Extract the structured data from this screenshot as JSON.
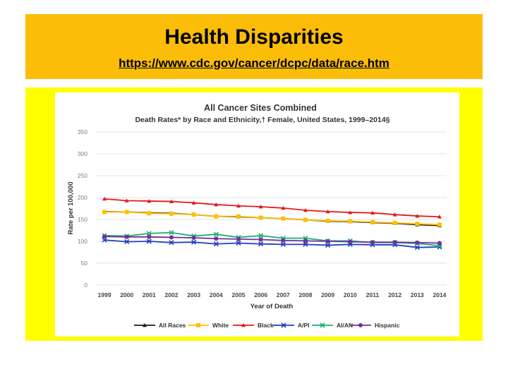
{
  "slide": {
    "title": "Health Disparities",
    "link": "https://www.cdc.gov/cancer/dcpc/data/race.htm"
  },
  "colors": {
    "header_bg": "#fbbd08",
    "panel_bg": "#ffff00",
    "gridline": "#e3e3e3",
    "tick_text": "#7f7f7f"
  },
  "chart_data": {
    "type": "line",
    "title": "All Cancer Sites Combined",
    "subtitle": "Death Rates* by Race and Ethnicity,†  Female, United States, 1999–2014§",
    "xlabel": "Year of Death",
    "ylabel": "Rate per 100,000",
    "ylim": [
      0,
      350
    ],
    "yticks": [
      0,
      50,
      100,
      150,
      200,
      250,
      300,
      350
    ],
    "grid": true,
    "legend_position": "bottom",
    "categories": [
      "1999",
      "2000",
      "2001",
      "2002",
      "2003",
      "2004",
      "2005",
      "2006",
      "2007",
      "2008",
      "2009",
      "2010",
      "2011",
      "2012",
      "2013",
      "2014"
    ],
    "series": [
      {
        "name": "All Races",
        "color": "#1a1a1a",
        "marker": "triangle",
        "values": [
          168,
          167,
          165,
          164,
          161,
          157,
          156,
          154,
          152,
          149,
          146,
          145,
          143,
          141,
          138,
          136
        ]
      },
      {
        "name": "White",
        "color": "#ffc000",
        "marker": "square",
        "values": [
          167,
          167,
          164,
          163,
          161,
          157,
          157,
          154,
          152,
          149,
          147,
          146,
          144,
          142,
          140,
          138
        ]
      },
      {
        "name": "Black",
        "color": "#e31a1c",
        "marker": "triangle",
        "values": [
          197,
          193,
          192,
          191,
          188,
          184,
          181,
          179,
          176,
          171,
          168,
          166,
          165,
          161,
          158,
          156
        ]
      },
      {
        "name": "A/PI",
        "color": "#1f3fbf",
        "marker": "x",
        "values": [
          103,
          99,
          100,
          97,
          98,
          94,
          96,
          94,
          93,
          93,
          91,
          93,
          92,
          92,
          86,
          87
        ]
      },
      {
        "name": "AI/AN",
        "color": "#1fae6b",
        "marker": "x",
        "values": [
          113,
          112,
          118,
          120,
          112,
          116,
          109,
          113,
          107,
          107,
          101,
          101,
          97,
          97,
          95,
          90
        ]
      },
      {
        "name": "Hispanic",
        "color": "#7030a0",
        "marker": "circle",
        "values": [
          111,
          110,
          110,
          109,
          108,
          106,
          105,
          104,
          102,
          101,
          100,
          99,
          98,
          98,
          97,
          96
        ]
      }
    ]
  }
}
